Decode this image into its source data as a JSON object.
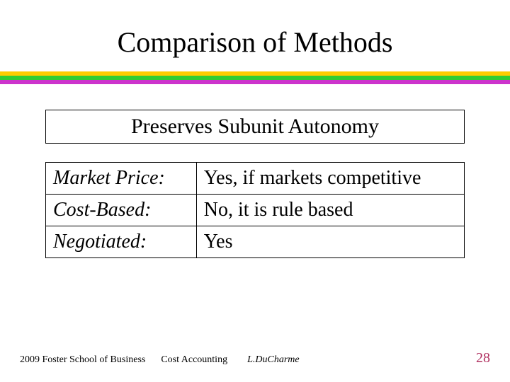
{
  "title": "Comparison of Methods",
  "stripe_colors": [
    "#ffcc00",
    "#33cc33",
    "#cc33cc"
  ],
  "subheader": "Preserves Subunit Autonomy",
  "table": {
    "rows": [
      {
        "label": "Market Price:",
        "value": "Yes, if markets competitive"
      },
      {
        "label": "Cost-Based:",
        "value": "No, it is rule based"
      },
      {
        "label": "Negotiated:",
        "value": "Yes"
      }
    ]
  },
  "footer": {
    "left1": "2009  Foster School of Business",
    "left2": "Cost Accounting",
    "left3": "L.DuCharme",
    "page": "28"
  },
  "colors": {
    "text": "#000000",
    "background": "#ffffff",
    "pagenum": "#b03060"
  }
}
